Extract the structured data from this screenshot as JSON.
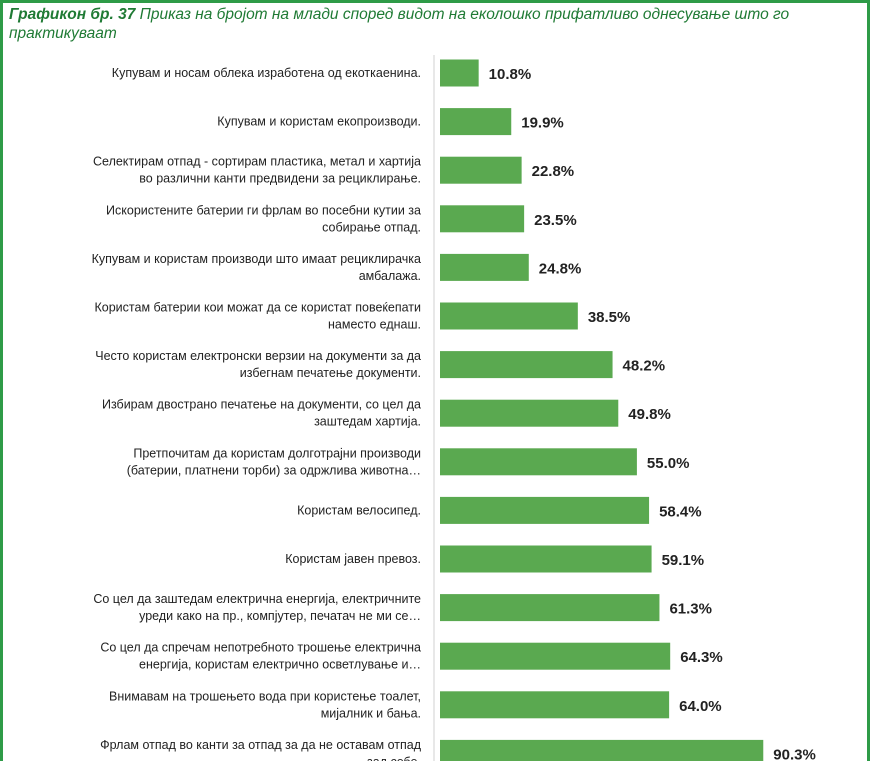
{
  "title": {
    "number": "Графикон бр. 37",
    "text": "Приказ на бројот на млади според видот на еколошко прифатливо однесување што го практикуваат"
  },
  "colors": {
    "bar": "#5aa950",
    "title": "#1f7a34",
    "frame": "#2e9b47"
  },
  "chart_data": {
    "type": "bar",
    "orientation": "horizontal",
    "unit": "%",
    "xlim": [
      0,
      100
    ],
    "grid": false,
    "categories": [
      [
        "Купувам и носам облека изработена од екоткаенина."
      ],
      [
        "Купувам и користам екопроизводи."
      ],
      [
        "Селектирам отпад - сортирам пластика, метал и хартија",
        "во различни канти предвидени за рециклирање."
      ],
      [
        "Искористените батерии ги фрлам во посебни кутии за",
        "собирање отпад."
      ],
      [
        "Купувам и користам производи што имаат рециклирачка",
        "амбалажа."
      ],
      [
        "Користам батерии кои можат да се користат повеќепати",
        "наместо еднаш."
      ],
      [
        "Често користам електронски верзии на документи за да",
        "избегнам печатење документи."
      ],
      [
        "Избирам двострано печатење на документи, со цел да",
        "заштедам хартија."
      ],
      [
        "Претпочитам да користам долготрајни производи",
        "(батерии, платнени торби) за одржлива животна…"
      ],
      [
        "Користам велосипед."
      ],
      [
        "Користам јавен превоз."
      ],
      [
        "Со цел да заштедам електрична енергија, електричните",
        "уреди како на пр., компјутер, печатач не ми се…"
      ],
      [
        "Со цел да спречам непотребното трошење електрична",
        "енергија, користам електрично осветлување и…"
      ],
      [
        "Внимавам на трошењето вода при користење тоалет,",
        "мијалник и бања."
      ],
      [
        "Фрлам отпад во канти за отпад за да не оставам отпад",
        "зад себе."
      ]
    ],
    "values": [
      10.8,
      19.9,
      22.8,
      23.5,
      24.8,
      38.5,
      48.2,
      49.8,
      55.0,
      58.4,
      59.1,
      61.3,
      64.3,
      64.0,
      90.3
    ],
    "labels": [
      "10.8%",
      "19.9%",
      "22.8%",
      "23.5%",
      "24.8%",
      "38.5%",
      "48.2%",
      "49.8%",
      "55.0%",
      "58.4%",
      "59.1%",
      "61.3%",
      "64.3%",
      "64.0%",
      "90.3%"
    ]
  }
}
